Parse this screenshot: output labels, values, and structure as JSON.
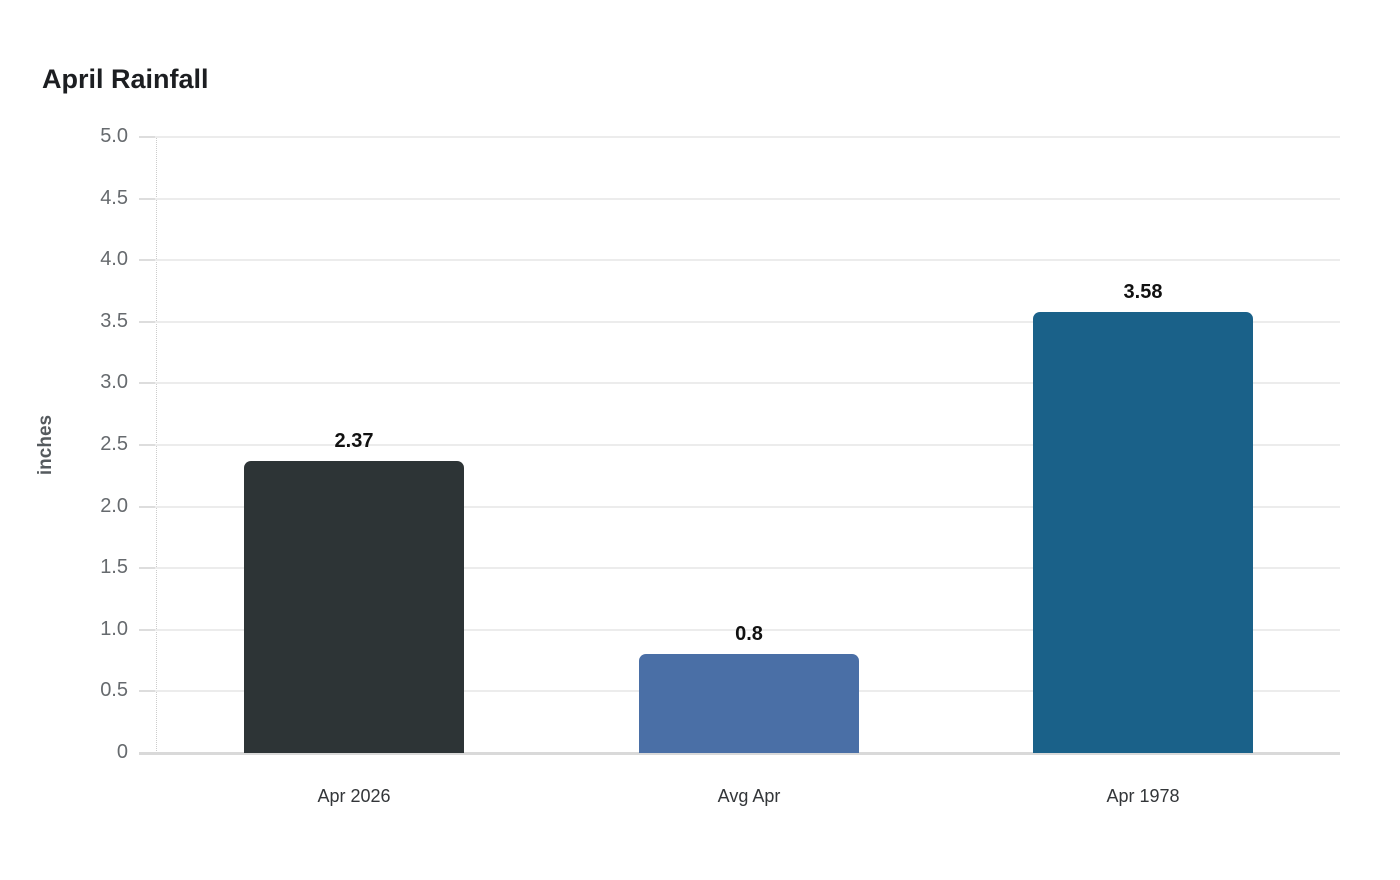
{
  "page": {
    "title": "April Rainfall"
  },
  "chart_data": {
    "type": "bar",
    "title": "April Rainfall",
    "categories": [
      "Apr 2026",
      "Avg Apr",
      "Apr 1978"
    ],
    "values": [
      2.37,
      0.8,
      3.58
    ],
    "value_labels": [
      "2.37",
      "0.8",
      "3.58"
    ],
    "bar_colors": [
      "#2d3436",
      "#4a6fa6",
      "#1a6189"
    ],
    "xlabel": "",
    "ylabel": "inches",
    "ylim": [
      0,
      5
    ],
    "ytick_step": 0.5,
    "ytick_labels": [
      "5.0",
      "4.5",
      "4.0",
      "3.5",
      "3.0",
      "2.5",
      "2.0",
      "1.5",
      "1.0",
      "0.5",
      "0"
    ],
    "grid": "horizontal",
    "legend_position": "none"
  },
  "style": {
    "grid_color": "#ececec",
    "baseline_color": "#d9d9d9",
    "axis_line_color": "#cccccc",
    "ytick_color": "#666a6e",
    "xtick_color": "#333639",
    "title_color": "#1c1e21",
    "ylabel_color": "#555a5e",
    "value_label_color": "#111111",
    "background": "#ffffff"
  }
}
